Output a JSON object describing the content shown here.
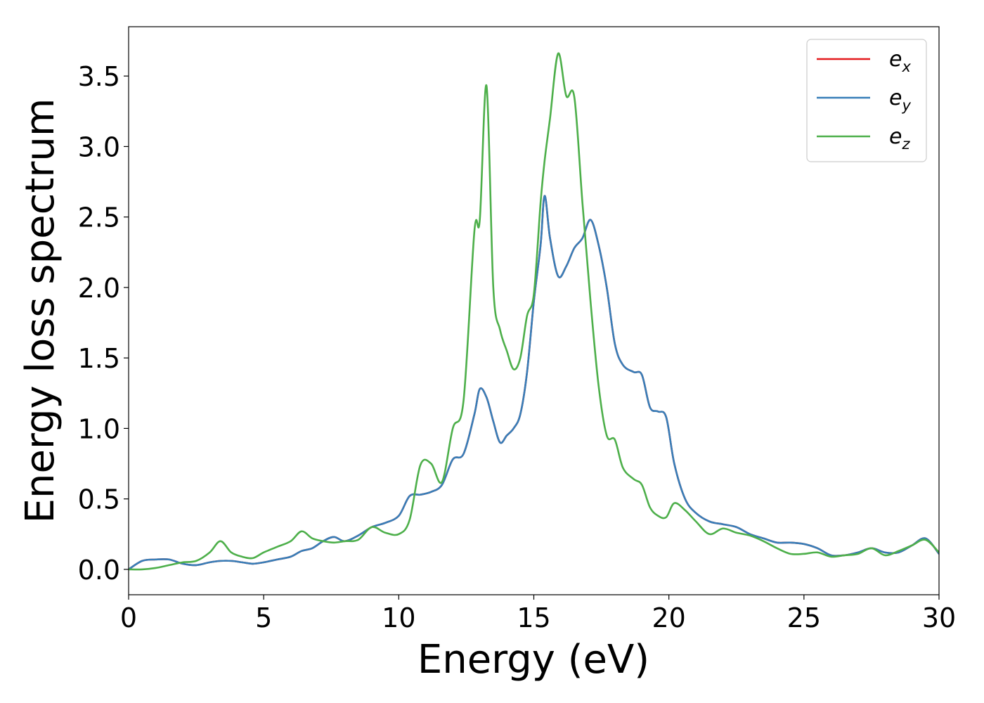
{
  "chart_data": {
    "type": "line",
    "xlabel": "Energy (eV)",
    "ylabel": "Energy loss spectrum",
    "xlim": [
      0,
      30
    ],
    "ylim": [
      -0.18,
      3.85
    ],
    "grid": false,
    "legend_position": "top-right",
    "x_ticks": [
      "0",
      "5",
      "10",
      "15",
      "20",
      "25",
      "30"
    ],
    "y_ticks": [
      "0.0",
      "0.5",
      "1.0",
      "1.5",
      "2.0",
      "2.5",
      "3.0",
      "3.5"
    ],
    "x": [
      0,
      0.5,
      1.0,
      1.5,
      2.0,
      2.5,
      3.0,
      3.4,
      3.8,
      4.2,
      4.6,
      5.0,
      5.5,
      6.0,
      6.4,
      6.8,
      7.2,
      7.6,
      8.0,
      8.5,
      9.0,
      9.5,
      10.0,
      10.4,
      10.8,
      11.2,
      11.6,
      12.0,
      12.4,
      12.8,
      13.0,
      13.25,
      13.5,
      13.75,
      14.0,
      14.25,
      14.5,
      14.75,
      15.0,
      15.25,
      15.4,
      15.6,
      15.9,
      16.2,
      16.5,
      16.8,
      17.1,
      17.4,
      17.7,
      18.0,
      18.3,
      18.7,
      19.0,
      19.3,
      19.6,
      19.9,
      20.2,
      20.6,
      21.0,
      21.5,
      22.0,
      22.5,
      23.0,
      23.5,
      24.0,
      24.5,
      25.0,
      25.5,
      26.0,
      26.5,
      27.0,
      27.5,
      28.0,
      28.5,
      29.0,
      29.5,
      30.0
    ],
    "series": [
      {
        "name": "e",
        "subscript": "x",
        "color": "#e41a1c",
        "values": [
          0.0,
          0.06,
          0.07,
          0.07,
          0.04,
          0.03,
          0.05,
          0.06,
          0.06,
          0.05,
          0.04,
          0.05,
          0.07,
          0.09,
          0.13,
          0.15,
          0.2,
          0.23,
          0.2,
          0.24,
          0.3,
          0.33,
          0.38,
          0.52,
          0.53,
          0.55,
          0.6,
          0.78,
          0.82,
          1.1,
          1.28,
          1.22,
          1.05,
          0.9,
          0.95,
          1.0,
          1.1,
          1.4,
          1.9,
          2.3,
          2.65,
          2.35,
          2.08,
          2.15,
          2.28,
          2.35,
          2.48,
          2.3,
          2.0,
          1.6,
          1.45,
          1.4,
          1.38,
          1.15,
          1.12,
          1.08,
          0.75,
          0.5,
          0.4,
          0.34,
          0.32,
          0.3,
          0.25,
          0.22,
          0.19,
          0.19,
          0.18,
          0.15,
          0.1,
          0.1,
          0.12,
          0.15,
          0.12,
          0.12,
          0.17,
          0.22,
          0.11
        ]
      },
      {
        "name": "e",
        "subscript": "y",
        "color": "#377eb8",
        "values": [
          0.0,
          0.06,
          0.07,
          0.07,
          0.04,
          0.03,
          0.05,
          0.06,
          0.06,
          0.05,
          0.04,
          0.05,
          0.07,
          0.09,
          0.13,
          0.15,
          0.2,
          0.23,
          0.2,
          0.24,
          0.3,
          0.33,
          0.38,
          0.52,
          0.53,
          0.55,
          0.6,
          0.78,
          0.82,
          1.1,
          1.28,
          1.22,
          1.05,
          0.9,
          0.95,
          1.0,
          1.1,
          1.4,
          1.9,
          2.3,
          2.65,
          2.35,
          2.08,
          2.15,
          2.28,
          2.35,
          2.48,
          2.3,
          2.0,
          1.6,
          1.45,
          1.4,
          1.38,
          1.15,
          1.12,
          1.08,
          0.75,
          0.5,
          0.4,
          0.34,
          0.32,
          0.3,
          0.25,
          0.22,
          0.19,
          0.19,
          0.18,
          0.15,
          0.1,
          0.1,
          0.12,
          0.15,
          0.12,
          0.12,
          0.17,
          0.22,
          0.11
        ]
      },
      {
        "name": "e",
        "subscript": "z",
        "color": "#4daf4a",
        "values": [
          0.0,
          0.0,
          0.01,
          0.03,
          0.05,
          0.06,
          0.12,
          0.2,
          0.12,
          0.09,
          0.08,
          0.12,
          0.16,
          0.2,
          0.27,
          0.22,
          0.2,
          0.19,
          0.2,
          0.21,
          0.3,
          0.26,
          0.25,
          0.35,
          0.74,
          0.75,
          0.62,
          1.0,
          1.2,
          2.4,
          2.48,
          3.43,
          2.0,
          1.7,
          1.55,
          1.42,
          1.5,
          1.8,
          1.95,
          2.6,
          2.9,
          3.2,
          3.66,
          3.36,
          3.35,
          2.6,
          1.9,
          1.3,
          0.95,
          0.92,
          0.72,
          0.64,
          0.6,
          0.44,
          0.38,
          0.37,
          0.47,
          0.42,
          0.34,
          0.25,
          0.29,
          0.26,
          0.24,
          0.2,
          0.15,
          0.11,
          0.11,
          0.12,
          0.09,
          0.1,
          0.11,
          0.15,
          0.1,
          0.13,
          0.17,
          0.21,
          0.12
        ]
      }
    ]
  }
}
